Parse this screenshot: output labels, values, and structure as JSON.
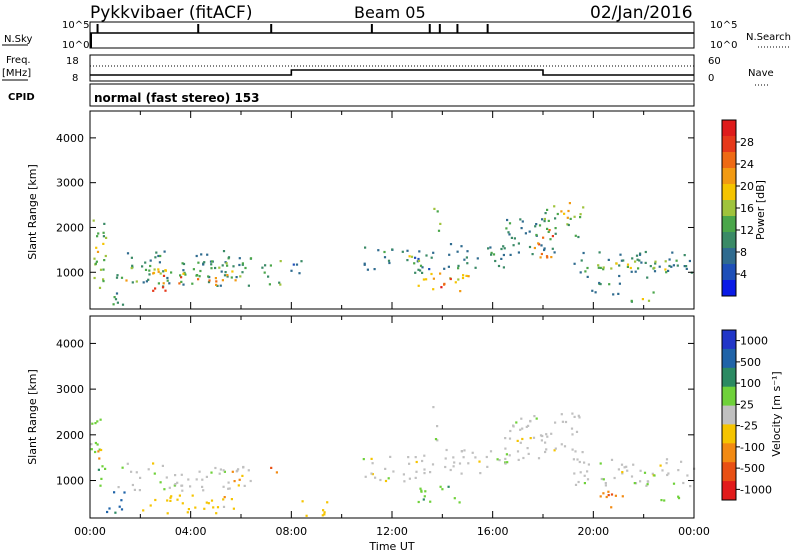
{
  "header": {
    "radar": "Pykkvibaer (fitACF)",
    "beam": "Beam 05",
    "date": "02/Jan/2016"
  },
  "strip_labels": {
    "nsky": "N.Sky",
    "nsky_top": "10^5",
    "nsky_bottom": "10^0",
    "nsearch": "N.Search",
    "nsearch_top": "10^5",
    "nsearch_bottom": "10^0",
    "freq": "Freq.",
    "freq_unit": "[MHz]",
    "freq_top": "18",
    "freq_bottom": "8",
    "nave": "Nave",
    "nave_top": "60",
    "nave_bottom": "0",
    "cpid": "CPID",
    "mode": "normal (fast stereo) 153"
  },
  "chart_data": [
    {
      "type": "heatmap",
      "ylabel": "Slant Range [km]",
      "xlabel": "Time UT",
      "xlim": [
        0,
        24
      ],
      "ylim": [
        180,
        4600
      ],
      "yticks": [
        "1000",
        "2000",
        "3000",
        "4000"
      ],
      "xtick_labels": [
        "00:00",
        "04:00",
        "08:00",
        "12:00",
        "16:00",
        "20:00",
        "00:00"
      ],
      "colorbar": {
        "label": "Power [dB]",
        "ticks": [
          "4",
          "8",
          "12",
          "16",
          "20",
          "24",
          "28"
        ],
        "colors": [
          "#0a1be6",
          "#1e4fb8",
          "#2f6b8f",
          "#3a8a66",
          "#4aa64a",
          "#9fc33c",
          "#f5c400",
          "#f29a12",
          "#ee6a14",
          "#e6381a",
          "#de1b1b"
        ]
      },
      "regions": [
        {
          "t": [
            0.0,
            0.6
          ],
          "r": [
            500,
            2400
          ],
          "v": 14
        },
        {
          "t": [
            0.2,
            0.5
          ],
          "r": [
            1400,
            2000
          ],
          "v": 22
        },
        {
          "t": [
            0.6,
            1.3
          ],
          "r": [
            200,
            700
          ],
          "v": 10
        },
        {
          "t": [
            1.0,
            6.4
          ],
          "r": [
            700,
            1500
          ],
          "v": 9
        },
        {
          "t": [
            1.4,
            3.0
          ],
          "r": [
            800,
            1200
          ],
          "v": 18
        },
        {
          "t": [
            2.4,
            3.6
          ],
          "r": [
            600,
            1000
          ],
          "v": 26
        },
        {
          "t": [
            3.5,
            6.2
          ],
          "r": [
            900,
            1300
          ],
          "v": 15
        },
        {
          "t": [
            4.2,
            5.8
          ],
          "r": [
            700,
            1000
          ],
          "v": 22
        },
        {
          "t": [
            6.8,
            7.6
          ],
          "r": [
            600,
            1300
          ],
          "v": 12
        },
        {
          "t": [
            7.8,
            8.6
          ],
          "r": [
            900,
            1300
          ],
          "v": 6
        },
        {
          "t": [
            10.8,
            13.6
          ],
          "r": [
            1000,
            1600
          ],
          "v": 8
        },
        {
          "t": [
            12.4,
            13.4
          ],
          "r": [
            1100,
            1400
          ],
          "v": 16
        },
        {
          "t": [
            13.0,
            14.8
          ],
          "r": [
            600,
            1000
          ],
          "v": 18
        },
        {
          "t": [
            13.4,
            14.4
          ],
          "r": [
            650,
            900
          ],
          "v": 27
        },
        {
          "t": [
            13.6,
            13.9
          ],
          "r": [
            1900,
            2700
          ],
          "v": 14
        },
        {
          "t": [
            14.0,
            16.6
          ],
          "r": [
            1100,
            1700
          ],
          "v": 8
        },
        {
          "t": [
            14.6,
            15.4
          ],
          "r": [
            800,
            1000
          ],
          "v": 22
        },
        {
          "t": [
            16.4,
            18.6
          ],
          "r": [
            1400,
            2300
          ],
          "v": 9
        },
        {
          "t": [
            17.6,
            18.4
          ],
          "r": [
            1200,
            2000
          ],
          "v": 24
        },
        {
          "t": [
            18.0,
            19.6
          ],
          "r": [
            1800,
            2500
          ],
          "v": 14
        },
        {
          "t": [
            18.6,
            19.2
          ],
          "r": [
            2100,
            2600
          ],
          "v": 20
        },
        {
          "t": [
            19.2,
            24.0
          ],
          "r": [
            900,
            1500
          ],
          "v": 9
        },
        {
          "t": [
            20.0,
            23.0
          ],
          "r": [
            1000,
            1300
          ],
          "v": 15
        },
        {
          "t": [
            19.8,
            21.2
          ],
          "r": [
            400,
            800
          ],
          "v": 9
        },
        {
          "t": [
            21.4,
            22.4
          ],
          "r": [
            350,
            650
          ],
          "v": 14
        }
      ]
    },
    {
      "type": "heatmap",
      "ylabel": "Slant Range [km]",
      "xlabel": "Time UT",
      "xlim": [
        0,
        24
      ],
      "ylim": [
        180,
        4600
      ],
      "yticks": [
        "1000",
        "2000",
        "3000",
        "4000"
      ],
      "xtick_labels": [
        "00:00",
        "04:00",
        "08:00",
        "12:00",
        "16:00",
        "20:00",
        "00:00"
      ],
      "colorbar": {
        "label": "Velocity [m s⁻¹]",
        "ticks": [
          "1000",
          "500",
          "100",
          "25",
          "-25",
          "-100",
          "-500",
          "-1000"
        ],
        "colors": [
          "#2136c8",
          "#1f63a8",
          "#2b8a62",
          "#6fd13a",
          "#c0c0c0",
          "#f5c400",
          "#f28a12",
          "#e85014",
          "#e21b1b"
        ]
      },
      "regions": [
        {
          "t": [
            0.0,
            0.6
          ],
          "r": [
            900,
            2400
          ],
          "v": 3
        },
        {
          "t": [
            0.2,
            0.5
          ],
          "r": [
            1200,
            1800
          ],
          "v": 6
        },
        {
          "t": [
            0.6,
            1.4
          ],
          "r": [
            300,
            900
          ],
          "v": 1
        },
        {
          "t": [
            1.0,
            6.4
          ],
          "r": [
            800,
            1400
          ],
          "v": 4
        },
        {
          "t": [
            2.0,
            6.0
          ],
          "r": [
            300,
            700
          ],
          "v": 5
        },
        {
          "t": [
            5.6,
            6.0
          ],
          "r": [
            900,
            1400
          ],
          "v": 6
        },
        {
          "t": [
            7.0,
            7.4
          ],
          "r": [
            1100,
            1400
          ],
          "v": 7
        },
        {
          "t": [
            8.4,
            9.4
          ],
          "r": [
            200,
            600
          ],
          "v": 5
        },
        {
          "t": [
            10.8,
            13.6
          ],
          "r": [
            1000,
            1600
          ],
          "v": 4
        },
        {
          "t": [
            13.0,
            15.0
          ],
          "r": [
            500,
            900
          ],
          "v": 3
        },
        {
          "t": [
            13.6,
            13.9
          ],
          "r": [
            1900,
            2700
          ],
          "v": 4
        },
        {
          "t": [
            14.0,
            16.6
          ],
          "r": [
            1100,
            1700
          ],
          "v": 4
        },
        {
          "t": [
            16.4,
            19.6
          ],
          "r": [
            1400,
            2500
          ],
          "v": 4
        },
        {
          "t": [
            19.2,
            24.0
          ],
          "r": [
            900,
            1500
          ],
          "v": 4
        },
        {
          "t": [
            19.8,
            21.2
          ],
          "r": [
            400,
            800
          ],
          "v": 6
        },
        {
          "t": [
            21.6,
            22.4
          ],
          "r": [
            900,
            1200
          ],
          "v": 3
        },
        {
          "t": [
            22.6,
            23.4
          ],
          "r": [
            500,
            800
          ],
          "v": 3
        }
      ]
    }
  ]
}
